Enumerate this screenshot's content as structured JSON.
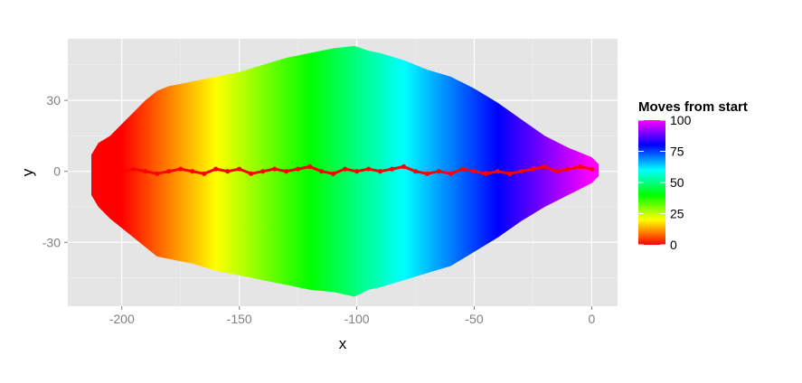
{
  "chart_data": {
    "type": "scatter",
    "title": "",
    "xlabel": "x",
    "ylabel": "y",
    "xlim": [
      -223,
      11
    ],
    "ylim": [
      -57,
      56
    ],
    "x_ticks": [
      -200,
      -150,
      -100,
      -50,
      0
    ],
    "x_tick_labels": [
      "-200",
      "-150",
      "-100",
      "-50",
      "0"
    ],
    "y_ticks": [
      -30,
      0,
      30
    ],
    "y_tick_labels": [
      "-30",
      "0",
      "30"
    ],
    "grid": true,
    "background": "#e5e5e5",
    "legend": {
      "title": "Moves from start",
      "placement": "right",
      "color_stops": [
        "#ff0000",
        "#ffff00",
        "#00ff00",
        "#00ffff",
        "#0000ff",
        "#ff00ff"
      ],
      "range": [
        0,
        100
      ],
      "ticks": [
        0,
        25,
        50,
        75,
        100
      ],
      "tick_labels": [
        "0",
        "25",
        "50",
        "75",
        "100"
      ]
    },
    "region": {
      "name": "Moves from start",
      "upper_boundary": [
        [
          -213,
          7
        ],
        [
          -210,
          12
        ],
        [
          -205,
          15
        ],
        [
          -200,
          20
        ],
        [
          -195,
          25
        ],
        [
          -190,
          30
        ],
        [
          -185,
          34
        ],
        [
          -180,
          36
        ],
        [
          -170,
          38
        ],
        [
          -160,
          40
        ],
        [
          -150,
          42
        ],
        [
          -140,
          45
        ],
        [
          -130,
          48
        ],
        [
          -120,
          50
        ],
        [
          -110,
          52
        ],
        [
          -101,
          53
        ],
        [
          -95,
          51
        ],
        [
          -90,
          50
        ],
        [
          -80,
          47
        ],
        [
          -70,
          43
        ],
        [
          -60,
          40
        ],
        [
          -50,
          35
        ],
        [
          -40,
          29
        ],
        [
          -30,
          22
        ],
        [
          -20,
          15
        ],
        [
          -10,
          10
        ],
        [
          0,
          6
        ],
        [
          3,
          3
        ]
      ],
      "lower_boundary": [
        [
          -213,
          -10
        ],
        [
          -210,
          -15
        ],
        [
          -205,
          -20
        ],
        [
          -200,
          -24
        ],
        [
          -195,
          -28
        ],
        [
          -190,
          -32
        ],
        [
          -185,
          -36
        ],
        [
          -180,
          -37
        ],
        [
          -170,
          -39
        ],
        [
          -160,
          -42
        ],
        [
          -150,
          -44
        ],
        [
          -140,
          -46
        ],
        [
          -130,
          -48
        ],
        [
          -120,
          -50
        ],
        [
          -110,
          -51
        ],
        [
          -101,
          -53
        ],
        [
          -95,
          -50
        ],
        [
          -90,
          -49
        ],
        [
          -80,
          -46
        ],
        [
          -70,
          -43
        ],
        [
          -60,
          -40
        ],
        [
          -50,
          -34
        ],
        [
          -40,
          -28
        ],
        [
          -30,
          -21
        ],
        [
          -20,
          -15
        ],
        [
          -10,
          -10
        ],
        [
          0,
          -5
        ],
        [
          3,
          -2
        ]
      ]
    },
    "path": {
      "name": "path",
      "color": "#ff0000",
      "x": [
        -200,
        -195,
        -190,
        -185,
        -180,
        -175,
        -170,
        -165,
        -160,
        -155,
        -150,
        -145,
        -140,
        -135,
        -130,
        -125,
        -120,
        -115,
        -110,
        -105,
        -100,
        -95,
        -90,
        -85,
        -80,
        -75,
        -70,
        -65,
        -60,
        -55,
        -50,
        -45,
        -40,
        -35,
        -30,
        -25,
        -20,
        -15,
        -10,
        -5,
        0
      ],
      "y": [
        0,
        1,
        0,
        -1,
        0,
        1,
        0,
        -1,
        1,
        0,
        1,
        -1,
        0,
        1,
        0,
        1,
        2,
        0,
        -1,
        1,
        0,
        1,
        0,
        1,
        2,
        0,
        -1,
        0,
        -1,
        1,
        0,
        -1,
        0,
        -1,
        0,
        1,
        2,
        0,
        1,
        2,
        1
      ]
    }
  }
}
